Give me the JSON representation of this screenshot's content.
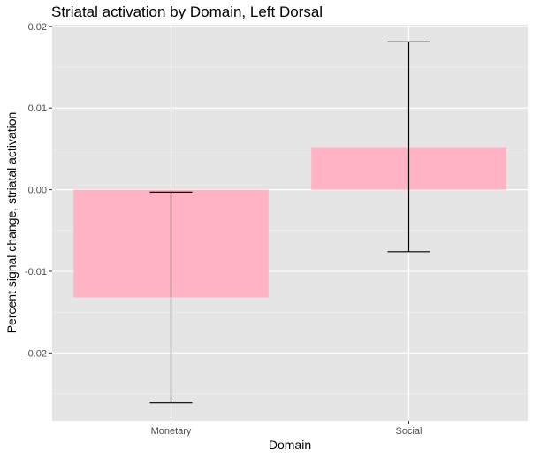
{
  "chart_data": {
    "type": "bar",
    "title": "Striatal activation by Domain, Left Dorsal",
    "xlabel": "Domain",
    "ylabel": "Percent signal change, striatal activation",
    "categories": [
      "Monetary",
      "Social"
    ],
    "values": [
      -0.0132,
      0.0052
    ],
    "error_low": [
      -0.0261,
      -0.0076
    ],
    "error_high": [
      -0.0003,
      0.0181
    ],
    "ylim": [
      -0.0283,
      0.0202
    ],
    "yticks": [
      -0.02,
      -0.01,
      0.0,
      0.01,
      0.02
    ],
    "ytick_labels": [
      "-0.02",
      "-0.01",
      "0.00",
      "0.01",
      "0.02"
    ],
    "bar_color": "#ffb3c4",
    "panel_color": "#e5e5e5",
    "grid": true
  }
}
